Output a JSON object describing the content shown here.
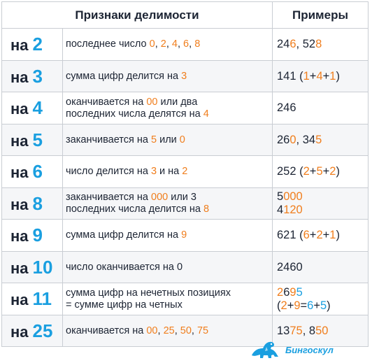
{
  "header": {
    "criteria": "Признаки делимости",
    "examples": "Примеры"
  },
  "prefix": "на",
  "rows": [
    {
      "n": "2",
      "rule": [
        [
          "последнее число ",
          0
        ],
        [
          "0",
          1
        ],
        [
          ", ",
          0
        ],
        [
          "2",
          1
        ],
        [
          ", ",
          0
        ],
        [
          "4",
          1
        ],
        [
          ", ",
          0
        ],
        [
          "6",
          1
        ],
        [
          ", ",
          0
        ],
        [
          "8",
          1
        ]
      ],
      "example": [
        [
          "24",
          0
        ],
        [
          "6",
          1
        ],
        [
          ", 52",
          0
        ],
        [
          "8",
          1
        ]
      ]
    },
    {
      "n": "3",
      "rule": [
        [
          "сумма цифр делится на ",
          0
        ],
        [
          "3",
          1
        ]
      ],
      "example": [
        [
          "141 (",
          0
        ],
        [
          "1",
          1
        ],
        [
          "+",
          0
        ],
        [
          "4",
          1
        ],
        [
          "+",
          0
        ],
        [
          "1",
          1
        ],
        [
          ")",
          0
        ]
      ]
    },
    {
      "n": "4",
      "rule": [
        [
          "оканчивается на ",
          0
        ],
        [
          "00",
          1
        ],
        [
          " или два",
          0
        ],
        [
          "\n",
          0
        ],
        [
          "последних числа делятся на ",
          0
        ],
        [
          "4",
          1
        ]
      ],
      "example": [
        [
          "246",
          0
        ]
      ]
    },
    {
      "n": "5",
      "rule": [
        [
          "заканчивается на ",
          0
        ],
        [
          "5",
          1
        ],
        [
          " или ",
          0
        ],
        [
          "0",
          1
        ]
      ],
      "example": [
        [
          "26",
          0
        ],
        [
          "0",
          1
        ],
        [
          ", 34",
          0
        ],
        [
          "5",
          1
        ]
      ]
    },
    {
      "n": "6",
      "rule": [
        [
          "число делится на ",
          0
        ],
        [
          "3",
          1
        ],
        [
          " и на ",
          0
        ],
        [
          "2",
          1
        ]
      ],
      "example": [
        [
          "252 (",
          0
        ],
        [
          "2",
          1
        ],
        [
          "+",
          0
        ],
        [
          "5",
          1
        ],
        [
          "+",
          0
        ],
        [
          "2",
          1
        ],
        [
          ")",
          0
        ]
      ]
    },
    {
      "n": "8",
      "rule": [
        [
          "заканчивается на ",
          0
        ],
        [
          "000",
          1
        ],
        [
          " или 3",
          0
        ],
        [
          "\n",
          0
        ],
        [
          "последних числа делится на ",
          0
        ],
        [
          "8",
          1
        ]
      ],
      "example": [
        [
          "5",
          0
        ],
        [
          "000",
          1
        ],
        [
          "\n",
          0
        ],
        [
          "4",
          0
        ],
        [
          "120",
          1
        ]
      ]
    },
    {
      "n": "9",
      "rule": [
        [
          "сумма цифр делится на ",
          0
        ],
        [
          "9",
          1
        ]
      ],
      "example": [
        [
          "621 (",
          0
        ],
        [
          "6",
          1
        ],
        [
          "+",
          0
        ],
        [
          "2",
          1
        ],
        [
          "+",
          0
        ],
        [
          "1",
          1
        ],
        [
          ")",
          0
        ]
      ]
    },
    {
      "n": "10",
      "rule": [
        [
          "число оканчивается на 0",
          0
        ]
      ],
      "example": [
        [
          "2460",
          0
        ]
      ]
    },
    {
      "n": "11",
      "rule": [
        [
          "сумма цифр на нечетных позициях",
          0
        ],
        [
          "\n",
          0
        ],
        [
          "=  сумме цифр на четных",
          0
        ]
      ],
      "example": [
        [
          " ",
          0
        ],
        [
          "2",
          1
        ],
        [
          "6",
          0
        ],
        [
          "9",
          1
        ],
        [
          "5",
          2
        ],
        [
          "\n",
          0
        ],
        [
          "(",
          0
        ],
        [
          "2",
          1
        ],
        [
          "+",
          0
        ],
        [
          "9",
          1
        ],
        [
          "=",
          0
        ],
        [
          "6",
          2
        ],
        [
          "+",
          0
        ],
        [
          "5",
          2
        ],
        [
          ")",
          0
        ]
      ]
    },
    {
      "n": "25",
      "rule": [
        [
          "оканчивается на ",
          0
        ],
        [
          "00",
          1
        ],
        [
          ", ",
          0
        ],
        [
          "25",
          1
        ],
        [
          ", ",
          0
        ],
        [
          "50",
          1
        ],
        [
          ", ",
          0
        ],
        [
          "75",
          1
        ]
      ],
      "example": [
        [
          "13",
          0
        ],
        [
          "75",
          1
        ],
        [
          ", 8",
          0
        ],
        [
          "50",
          1
        ]
      ]
    }
  ],
  "logo": {
    "text": "Бингоскул",
    "icon": "dinosaur-icon"
  },
  "colors": {
    "accent_blue": "#1a9fe0",
    "accent_orange": "#f07e1d",
    "text": "#1c2433",
    "border": "#c9cdd3"
  }
}
